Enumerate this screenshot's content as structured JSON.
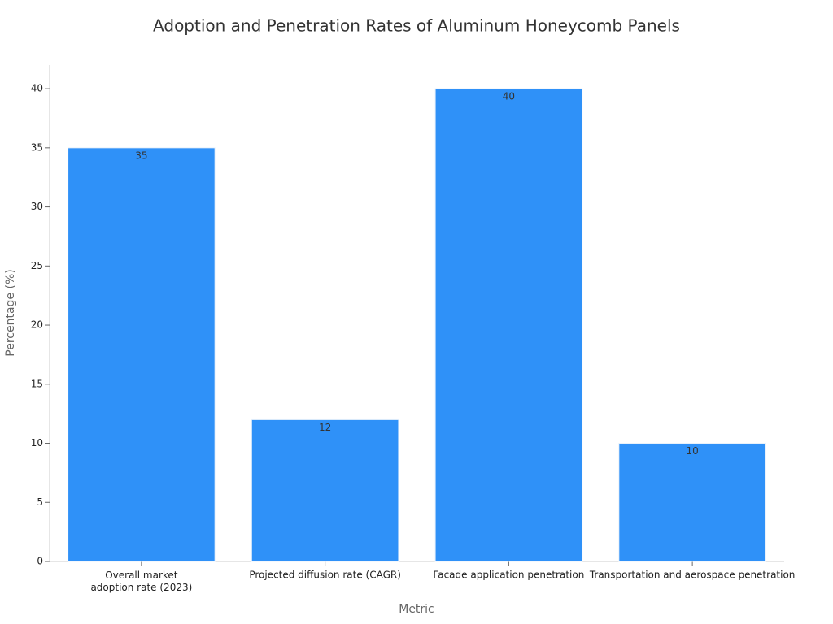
{
  "chart_data": {
    "type": "bar",
    "title": "Adoption and Penetration Rates of Aluminum Honeycomb Panels",
    "x_label": "Metric",
    "y_label": "Percentage (%)",
    "categories": [
      "Overall market\nadoption rate (2023)",
      "Projected diffusion rate (CAGR)",
      "Facade application penetration",
      "Transportation and aerospace penetration"
    ],
    "values": [
      35,
      12,
      40,
      10
    ],
    "color": "#2f91f8",
    "ylim": [
      0,
      42
    ],
    "yticks": [
      0,
      5,
      10,
      15,
      20,
      25,
      30,
      35,
      40
    ],
    "grid": false
  }
}
